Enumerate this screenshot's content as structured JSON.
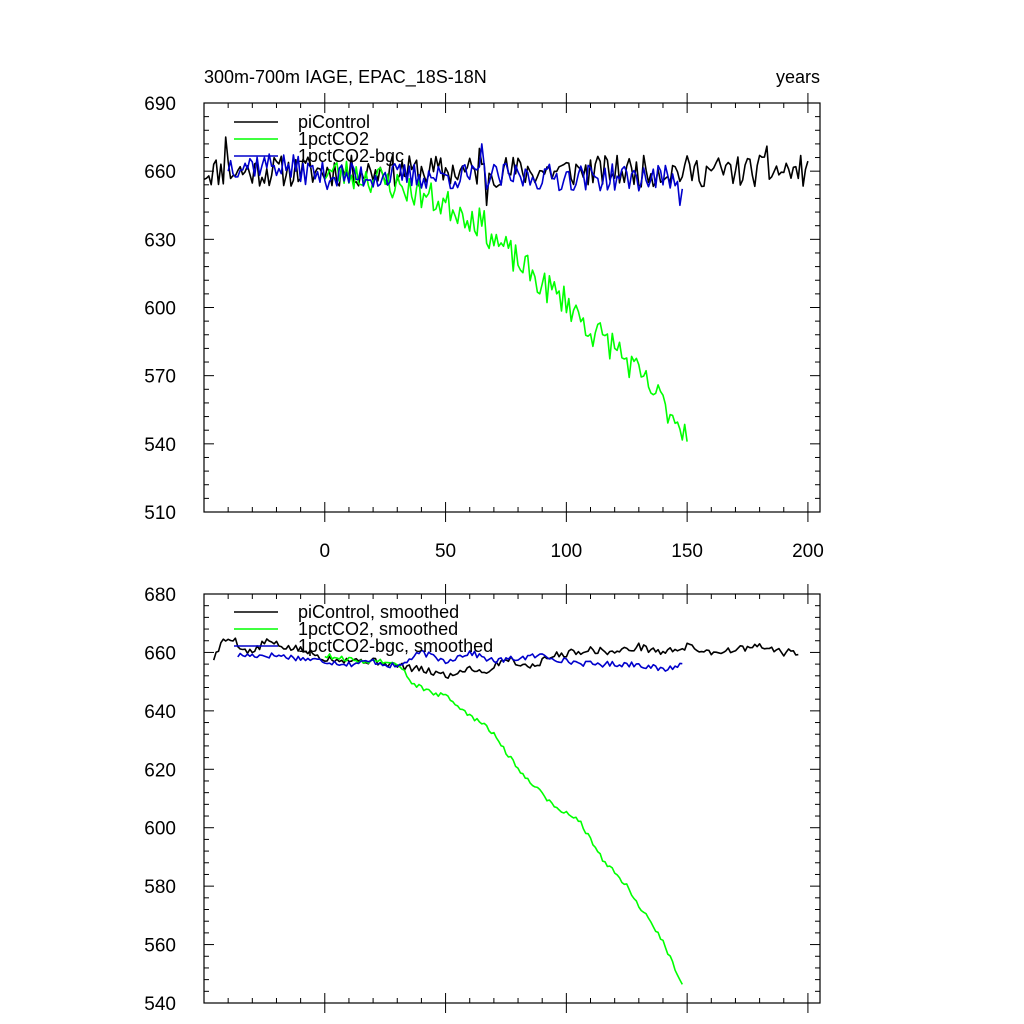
{
  "chart_data": [
    {
      "type": "line",
      "title": "300m-700m IAGE, EPAC_18S-18N",
      "title_right": "years",
      "xlabel": "",
      "ylabel": "",
      "xlim": [
        -50,
        205
      ],
      "ylim": [
        510,
        690
      ],
      "x_ticks": [
        0,
        50,
        100,
        150,
        200
      ],
      "x_tick_labels": [
        "0",
        "50",
        "100",
        "150",
        "200"
      ],
      "y_ticks": [
        510,
        540,
        570,
        600,
        630,
        660,
        690
      ],
      "y_tick_labels": [
        "510",
        "540",
        "570",
        "600",
        "630",
        "660",
        "690"
      ],
      "series": [
        {
          "name": "piControl",
          "color": "#000000",
          "kind": "control",
          "x_start": -50,
          "x_end": 200,
          "level": 660,
          "trend": [],
          "noise": 7,
          "seed": 11,
          "spikes": [
            [
              -41,
              675
            ],
            [
              67,
              645
            ],
            [
              64,
              670
            ],
            [
              183,
              671
            ]
          ]
        },
        {
          "name": "1pctCO2",
          "color": "#00ff00",
          "kind": "warming",
          "x_start": 0,
          "x_end": 150,
          "trend": [
            [
              0,
              660
            ],
            [
              20,
              657
            ],
            [
              40,
              650
            ],
            [
              55,
              643
            ],
            [
              65,
              637
            ],
            [
              70,
              630
            ],
            [
              80,
              620
            ],
            [
              90,
              610
            ],
            [
              100,
              603
            ],
            [
              110,
              590
            ],
            [
              120,
              583
            ],
            [
              130,
              570
            ],
            [
              140,
              558
            ],
            [
              150,
              545
            ]
          ],
          "noise": 7,
          "seed": 23,
          "spikes": [
            [
              150,
              541
            ]
          ]
        },
        {
          "name": "1pctCO2-bgc",
          "color": "#0000cc",
          "kind": "bgc",
          "x_start": -40,
          "x_end": 148,
          "trend": [
            [
              -40,
              663
            ],
            [
              -20,
              663
            ],
            [
              0,
              658
            ],
            [
              148,
              657
            ]
          ],
          "noise": 6,
          "seed": 37,
          "spikes": [
            [
              65,
              672
            ],
            [
              147,
              645
            ]
          ]
        }
      ]
    },
    {
      "type": "line",
      "title": "",
      "xlim": [
        -50,
        205
      ],
      "ylim": [
        540,
        680
      ],
      "y_ticks": [
        540,
        560,
        580,
        600,
        620,
        640,
        660,
        680
      ],
      "y_tick_labels": [
        "540",
        "560",
        "580",
        "600",
        "620",
        "640",
        "660",
        "680"
      ],
      "series": [
        {
          "name": "piControl, smoothed",
          "color": "#000000",
          "x_start": -46,
          "x_end": 196,
          "trend": [
            [
              -46,
              658
            ],
            [
              -42,
              664
            ],
            [
              -38,
              665
            ],
            [
              -34,
              661
            ],
            [
              -30,
              660
            ],
            [
              -24,
              664
            ],
            [
              -18,
              662
            ],
            [
              -10,
              661
            ],
            [
              0,
              658
            ],
            [
              20,
              657
            ],
            [
              40,
              654
            ],
            [
              52,
              652
            ],
            [
              60,
              655
            ],
            [
              66,
              653
            ],
            [
              75,
              658
            ],
            [
              85,
              655
            ],
            [
              95,
              659
            ],
            [
              110,
              661
            ],
            [
              120,
              660
            ],
            [
              130,
              662
            ],
            [
              140,
              660
            ],
            [
              150,
              662
            ],
            [
              160,
              660
            ],
            [
              170,
              661
            ],
            [
              180,
              662
            ],
            [
              190,
              660
            ],
            [
              196,
              660
            ]
          ],
          "noise": 1.2,
          "seed": 5
        },
        {
          "name": "1pctCO2, smoothed",
          "color": "#00ff00",
          "x_start": 0,
          "x_end": 148,
          "trend": [
            [
              0,
              659
            ],
            [
              15,
              657
            ],
            [
              25,
              657
            ],
            [
              32,
              655
            ],
            [
              35,
              650
            ],
            [
              40,
              648
            ],
            [
              45,
              646
            ],
            [
              50,
              645
            ],
            [
              55,
              642
            ],
            [
              60,
              638
            ],
            [
              65,
              636
            ],
            [
              70,
              632
            ],
            [
              75,
              626
            ],
            [
              80,
              620
            ],
            [
              85,
              616
            ],
            [
              90,
              612
            ],
            [
              95,
              607
            ],
            [
              100,
              605
            ],
            [
              105,
              603
            ],
            [
              110,
              596
            ],
            [
              115,
              589
            ],
            [
              120,
              585
            ],
            [
              125,
              580
            ],
            [
              130,
              573
            ],
            [
              135,
              568
            ],
            [
              140,
              561
            ],
            [
              145,
              552
            ],
            [
              148,
              547
            ]
          ],
          "noise": 0.8,
          "seed": 9
        },
        {
          "name": "1pctCO2-bgc, smoothed",
          "color": "#0000cc",
          "x_start": -36,
          "x_end": 148,
          "trend": [
            [
              -36,
              659
            ],
            [
              -20,
              659
            ],
            [
              0,
              657
            ],
            [
              10,
              656
            ],
            [
              20,
              657
            ],
            [
              30,
              655
            ],
            [
              40,
              660
            ],
            [
              50,
              657
            ],
            [
              60,
              660
            ],
            [
              70,
              657
            ],
            [
              80,
              658
            ],
            [
              90,
              659
            ],
            [
              100,
              657
            ],
            [
              110,
              656
            ],
            [
              120,
              656
            ],
            [
              130,
              656
            ],
            [
              140,
              654
            ],
            [
              148,
              656
            ]
          ],
          "noise": 1.0,
          "seed": 17
        }
      ]
    }
  ]
}
